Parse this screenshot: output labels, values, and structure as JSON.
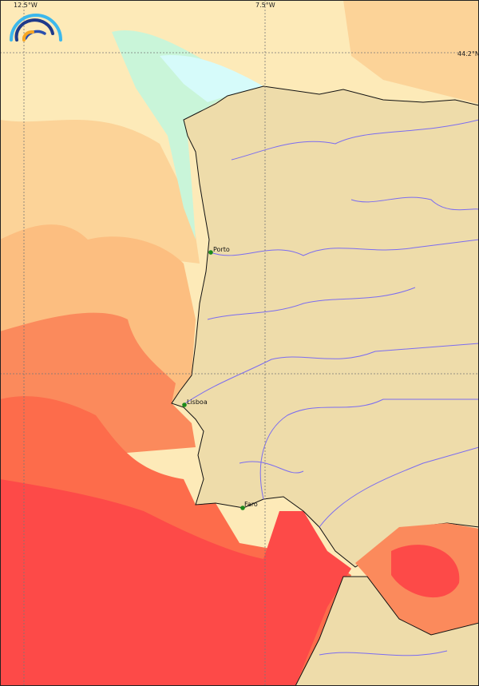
{
  "map": {
    "grid_labels": {
      "lon_left": "12.5°W",
      "lon_right": "7.5°W",
      "lat_top": "44.2°N"
    },
    "cities": [
      {
        "name": "Porto"
      },
      {
        "name": "Lisboa"
      },
      {
        "name": "Faro"
      }
    ],
    "colors": {
      "land": "#eedcaa",
      "river": "#7b6cf0",
      "city_marker": "#1a8a1a",
      "sea_cool": "#d6fbfa",
      "sea_pale": "#fdeab8",
      "sea_light_orange": "#fcd398",
      "sea_orange": "#fcbe80",
      "sea_salmon": "#fb8a5c",
      "sea_red_orange": "#fd6c4b",
      "sea_red": "#fd4a48"
    },
    "logo_icon": "rainbow-arcs-logo"
  }
}
